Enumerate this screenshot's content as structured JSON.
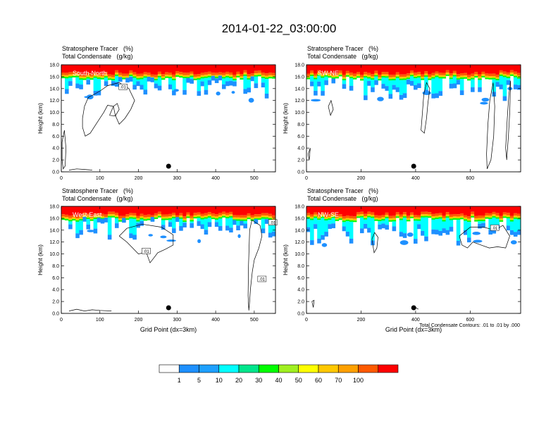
{
  "title": "2014-01-22_03:00:00",
  "chart_data": [
    {
      "type": "heatmap",
      "name": "South-North",
      "label": "South-North",
      "subtitle_1": "Stratosphere Tracer   (%)",
      "subtitle_2": "Total Condensate   (g/kg)",
      "ylabel": "Height (km)",
      "xlabel": "",
      "xlim": [
        0,
        555
      ],
      "ylim": [
        0,
        18
      ],
      "xticks": [
        0,
        100,
        200,
        300,
        400,
        500
      ],
      "yticks": [
        "0.0",
        "2.0",
        "4.0",
        "6.0",
        "8.0",
        "10.0",
        "12.0",
        "14.0",
        "16.0",
        "18.0"
      ],
      "dot_x": 278,
      "contour_labels": [
        ".01"
      ],
      "contour_value": 0.01,
      "tropopause_km": 16.0,
      "cloud_top_km": 15.4
    },
    {
      "type": "heatmap",
      "name": "SW-NE",
      "label": "SW-NE",
      "subtitle_1": "Stratosphere Tracer   (%)",
      "subtitle_2": "Total Condensate   (g/kg)",
      "ylabel": "Height (km)",
      "xlabel": "",
      "xlim": [
        0,
        785
      ],
      "ylim": [
        0,
        18
      ],
      "xticks": [
        0,
        200,
        400,
        600
      ],
      "yticks": [
        "0.0",
        "2.0",
        "4.0",
        "6.0",
        "8.0",
        "10.0",
        "12.0",
        "14.0",
        "16.0",
        "18.0"
      ],
      "dot_x": 393,
      "contour_labels": [],
      "contour_value": 0.01,
      "tropopause_km": 16.0,
      "cloud_top_km": 15.0
    },
    {
      "type": "heatmap",
      "name": "West-East",
      "label": "West-East",
      "subtitle_1": "Stratosphere Tracer   (%)",
      "subtitle_2": "Total Condensate   (g/kg)",
      "ylabel": "Height (km)",
      "xlabel": "Grid Point (dx=3km)",
      "xlim": [
        0,
        555
      ],
      "ylim": [
        0,
        18
      ],
      "xticks": [
        0,
        100,
        200,
        300,
        400,
        500
      ],
      "yticks": [
        "0.0",
        "2.0",
        "4.0",
        "6.0",
        "8.0",
        "10.0",
        "12.0",
        "14.0",
        "16.0",
        "18.0"
      ],
      "dot_x": 278,
      "contour_labels": [
        ".01",
        ".01",
        ".01"
      ],
      "contour_value": 0.01,
      "tropopause_km": 16.0,
      "cloud_top_km": 15.5
    },
    {
      "type": "heatmap",
      "name": "NW-SE",
      "label": "NW-SE",
      "subtitle_1": "Stratosphere Tracer   (%)",
      "subtitle_2": "Total Condensate   (g/kg)",
      "ylabel": "Height (km)",
      "xlabel": "Grid Point (dx=3km)",
      "xlim": [
        0,
        785
      ],
      "ylim": [
        0,
        18
      ],
      "xticks": [
        0,
        200,
        400,
        600
      ],
      "yticks": [
        "0.0",
        "2.0",
        "4.0",
        "6.0",
        "8.0",
        "10.0",
        "12.0",
        "14.0",
        "16.0",
        "18.0"
      ],
      "dot_x": 393,
      "contour_labels": [
        ".01"
      ],
      "contour_value": 0.01,
      "tropopause_km": 16.0,
      "cloud_top_km": 14.5
    }
  ],
  "contour_note": "Total Condensate Contours: .01 to .01 by .000",
  "colorbar": {
    "levels": [
      "1",
      "5",
      "10",
      "20",
      "30",
      "40",
      "50",
      "60",
      "70",
      "100"
    ],
    "colors": [
      "#ffffff",
      "#1e90ff",
      "#1ea0ff",
      "#00ffff",
      "#00e68c",
      "#00ff00",
      "#a0f020",
      "#ffff00",
      "#ffc800",
      "#ffa000",
      "#ff5a00",
      "#ff0000"
    ]
  }
}
